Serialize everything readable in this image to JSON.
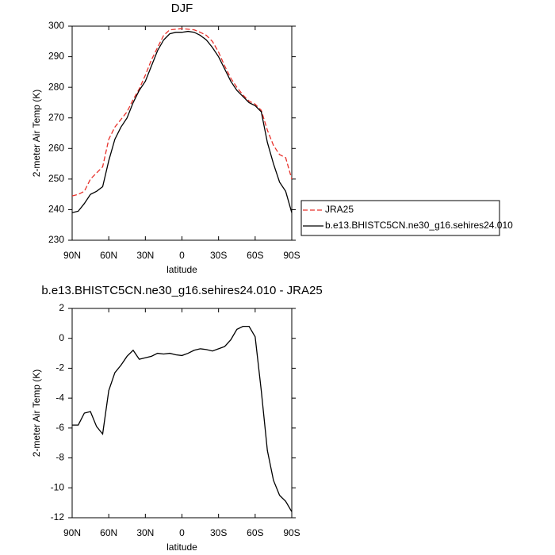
{
  "chart_data": [
    {
      "type": "line",
      "title": "DJF",
      "x_label": "latitude",
      "y_label": "2-meter Air Temp (K)",
      "x": [
        90,
        85,
        80,
        75,
        70,
        65,
        60,
        55,
        50,
        45,
        40,
        35,
        30,
        25,
        20,
        15,
        10,
        5,
        0,
        -5,
        -10,
        -15,
        -20,
        -25,
        -30,
        -35,
        -40,
        -45,
        -50,
        -55,
        -60,
        -65,
        -70,
        -75,
        -80,
        -85,
        -90
      ],
      "series": [
        {
          "name": "JRA25",
          "color": "#e8302a",
          "dash": true,
          "values": [
            244.5,
            245,
            246,
            250,
            252,
            254,
            263,
            267,
            269.5,
            272,
            276,
            279.5,
            284,
            289,
            293,
            297,
            298.8,
            299,
            299.2,
            299,
            298.8,
            298,
            297,
            295,
            291.5,
            287,
            283,
            280,
            277.5,
            275.5,
            274.5,
            272.5,
            266,
            261,
            258,
            257,
            250
          ]
        },
        {
          "name": "b.e13.BHISTC5CN.ne30_g16.sehires24.010",
          "color": "#000000",
          "dash": false,
          "values": [
            239,
            239.5,
            242,
            245,
            246,
            247.5,
            256,
            263,
            267,
            270,
            275,
            279,
            282,
            287,
            292,
            295.5,
            297.5,
            298,
            298,
            298.3,
            298,
            297,
            295.5,
            293,
            290,
            286,
            282,
            279,
            277,
            275,
            274,
            272,
            262,
            255,
            249,
            246,
            239
          ]
        }
      ],
      "xlim": [
        90,
        -90
      ],
      "xticks": [
        {
          "value": 90,
          "label": "90N"
        },
        {
          "value": 60,
          "label": "60N"
        },
        {
          "value": 30,
          "label": "30N"
        },
        0,
        {
          "value": -30,
          "label": "30S"
        },
        {
          "value": -60,
          "label": "60S"
        },
        {
          "value": -90,
          "label": "90S"
        }
      ],
      "ylim": [
        230,
        300
      ],
      "yticks": [
        230,
        240,
        250,
        260,
        270,
        280,
        290,
        300
      ],
      "legend": "right"
    },
    {
      "type": "line",
      "title": "b.e13.BHISTC5CN.ne30_g16.sehires24.010 - JRA25",
      "x_label": "latitude",
      "y_label": "2-meter Air Temp (K)",
      "x": [
        90,
        85,
        80,
        75,
        70,
        65,
        60,
        55,
        50,
        45,
        40,
        35,
        30,
        25,
        20,
        15,
        10,
        5,
        0,
        -5,
        -10,
        -15,
        -20,
        -25,
        -30,
        -35,
        -40,
        -45,
        -50,
        -55,
        -60,
        -65,
        -70,
        -75,
        -80,
        -85,
        -90
      ],
      "series": [
        {
          "color": "#000000",
          "dash": false,
          "values": [
            -5.8,
            -5.8,
            -5.0,
            -4.9,
            -5.9,
            -6.4,
            -3.5,
            -2.3,
            -1.8,
            -1.2,
            -0.8,
            -1.4,
            -1.3,
            -1.2,
            -1.0,
            -1.05,
            -1.0,
            -1.1,
            -1.15,
            -1.0,
            -0.8,
            -0.7,
            -0.75,
            -0.85,
            -0.7,
            -0.55,
            -0.1,
            0.6,
            0.8,
            0.8,
            0.1,
            -3.5,
            -7.5,
            -9.5,
            -10.5,
            -10.9,
            -11.6
          ]
        }
      ],
      "xlim": [
        90,
        -90
      ],
      "xticks": [
        {
          "value": 90,
          "label": "90N"
        },
        {
          "value": 60,
          "label": "60N"
        },
        {
          "value": 30,
          "label": "30N"
        },
        0,
        {
          "value": -30,
          "label": "30S"
        },
        {
          "value": -60,
          "label": "60S"
        },
        {
          "value": -90,
          "label": "90S"
        }
      ],
      "ylim": [
        -12,
        2
      ],
      "yticks": [
        -12,
        -10,
        -8,
        -6,
        -4,
        -2,
        0,
        2
      ]
    }
  ]
}
